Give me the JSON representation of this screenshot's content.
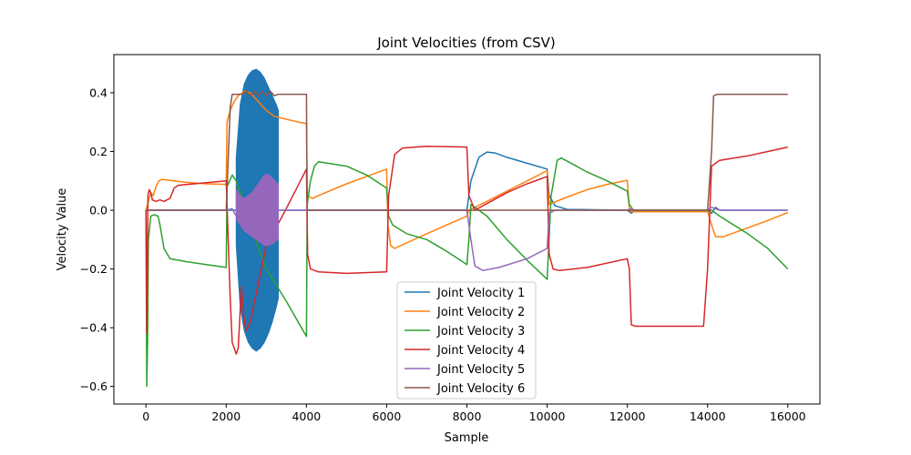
{
  "chart_data": {
    "type": "line",
    "title": "Joint Velocities (from CSV)",
    "xlabel": "Sample",
    "ylabel": "Velocity Value",
    "xlim": [
      -800,
      16800
    ],
    "ylim": [
      -0.66,
      0.53
    ],
    "xticks": [
      0,
      2000,
      4000,
      6000,
      8000,
      10000,
      12000,
      14000,
      16000
    ],
    "xtick_labels": [
      "0",
      "2000",
      "4000",
      "6000",
      "8000",
      "10000",
      "12000",
      "14000",
      "16000"
    ],
    "yticks": [
      0.4,
      0.2,
      0.0,
      -0.2,
      -0.4,
      -0.6
    ],
    "ytick_labels": [
      "0.4",
      "0.2",
      "0.0",
      "−0.2",
      "−0.4",
      "−0.6"
    ],
    "grid": false,
    "legend_position": "lower-center",
    "series": [
      {
        "name": "Joint Velocity 1",
        "color": "#1f77b4",
        "points": [
          [
            0,
            0
          ],
          [
            2000,
            0
          ],
          [
            2200,
            0
          ],
          [
            2300,
            0
          ]
        ],
        "band": {
          "x": [
            2250,
            2350,
            2450,
            2550,
            2650,
            2750,
            2850,
            2950,
            3050,
            3150,
            3250,
            3300
          ],
          "upper": [
            0.18,
            0.36,
            0.43,
            0.46,
            0.475,
            0.48,
            0.47,
            0.45,
            0.42,
            0.39,
            0.36,
            0.34
          ],
          "lower": [
            -0.12,
            -0.33,
            -0.41,
            -0.45,
            -0.47,
            -0.48,
            -0.47,
            -0.45,
            -0.42,
            -0.38,
            -0.33,
            -0.3
          ]
        },
        "points_after": [
          [
            3300,
            0
          ],
          [
            4000,
            0
          ],
          [
            5000,
            0
          ],
          [
            6000,
            0
          ],
          [
            8000,
            0
          ],
          [
            8100,
            0.1
          ],
          [
            8300,
            0.18
          ],
          [
            8500,
            0.198
          ],
          [
            8700,
            0.195
          ],
          [
            9000,
            0.18
          ],
          [
            9500,
            0.16
          ],
          [
            10000,
            0.14
          ],
          [
            10050,
            0.05
          ],
          [
            10200,
            0.015
          ],
          [
            10500,
            0.003
          ],
          [
            12000,
            0
          ],
          [
            12100,
            -0.01
          ],
          [
            12200,
            0
          ],
          [
            14000,
            0
          ],
          [
            14100,
            -0.01
          ],
          [
            14200,
            0.01
          ],
          [
            14300,
            0
          ],
          [
            16000,
            0
          ]
        ]
      },
      {
        "name": "Joint Velocity 2",
        "color": "#ff7f0e",
        "points": [
          [
            0,
            0
          ],
          [
            80,
            0.04
          ],
          [
            120,
            0.06
          ],
          [
            180,
            0.05
          ],
          [
            250,
            0.08
          ],
          [
            320,
            0.1
          ],
          [
            400,
            0.105
          ],
          [
            700,
            0.1
          ],
          [
            1000,
            0.095
          ],
          [
            1500,
            0.09
          ],
          [
            2000,
            0.088
          ],
          [
            2020,
            0.3
          ],
          [
            2100,
            0.34
          ],
          [
            2200,
            0.37
          ],
          [
            2300,
            0.39
          ],
          [
            2450,
            0.405
          ],
          [
            2600,
            0.4
          ],
          [
            2800,
            0.37
          ],
          [
            3000,
            0.34
          ],
          [
            3200,
            0.32
          ],
          [
            3500,
            0.31
          ],
          [
            3800,
            0.3
          ],
          [
            4000,
            0.295
          ],
          [
            4020,
            0.05
          ],
          [
            4150,
            0.04
          ],
          [
            4300,
            0.05
          ],
          [
            5000,
            0.09
          ],
          [
            5500,
            0.115
          ],
          [
            6000,
            0.14
          ],
          [
            6030,
            -0.05
          ],
          [
            6100,
            -0.12
          ],
          [
            6200,
            -0.13
          ],
          [
            7000,
            -0.08
          ],
          [
            8000,
            -0.02
          ],
          [
            8050,
            0.0
          ],
          [
            8500,
            0.03
          ],
          [
            9000,
            0.065
          ],
          [
            9500,
            0.1
          ],
          [
            10000,
            0.135
          ],
          [
            10050,
            0.02
          ],
          [
            10500,
            0.045
          ],
          [
            11000,
            0.07
          ],
          [
            11500,
            0.088
          ],
          [
            12000,
            0.102
          ],
          [
            12050,
            0.0
          ],
          [
            12100,
            -0.005
          ],
          [
            14000,
            -0.005
          ],
          [
            14100,
            -0.05
          ],
          [
            14200,
            -0.09
          ],
          [
            14400,
            -0.09
          ],
          [
            15000,
            -0.06
          ],
          [
            15500,
            -0.035
          ],
          [
            16000,
            -0.008
          ]
        ]
      },
      {
        "name": "Joint Velocity 3",
        "color": "#2ca02c",
        "points": [
          [
            0,
            0
          ],
          [
            20,
            -0.6
          ],
          [
            40,
            -0.45
          ],
          [
            60,
            -0.1
          ],
          [
            120,
            -0.02
          ],
          [
            200,
            -0.015
          ],
          [
            300,
            -0.02
          ],
          [
            350,
            -0.05
          ],
          [
            450,
            -0.13
          ],
          [
            600,
            -0.165
          ],
          [
            1000,
            -0.175
          ],
          [
            1500,
            -0.185
          ],
          [
            2000,
            -0.195
          ],
          [
            2020,
            0.08
          ],
          [
            2150,
            0.12
          ],
          [
            2250,
            0.1
          ],
          [
            2400,
            0.04
          ],
          [
            2700,
            -0.09
          ],
          [
            3000,
            -0.2
          ],
          [
            3500,
            -0.31
          ],
          [
            4000,
            -0.43
          ],
          [
            4020,
            0.02
          ],
          [
            4100,
            0.1
          ],
          [
            4200,
            0.15
          ],
          [
            4300,
            0.165
          ],
          [
            5000,
            0.15
          ],
          [
            5500,
            0.12
          ],
          [
            6000,
            0.075
          ],
          [
            6050,
            -0.02
          ],
          [
            6150,
            -0.05
          ],
          [
            6500,
            -0.08
          ],
          [
            7000,
            -0.1
          ],
          [
            7500,
            -0.14
          ],
          [
            8000,
            -0.185
          ],
          [
            8050,
            -0.1
          ],
          [
            8100,
            0.02
          ],
          [
            8500,
            -0.02
          ],
          [
            9000,
            -0.1
          ],
          [
            9500,
            -0.17
          ],
          [
            10000,
            -0.235
          ],
          [
            10100,
            0.05
          ],
          [
            10250,
            0.17
          ],
          [
            10350,
            0.178
          ],
          [
            10600,
            0.16
          ],
          [
            11000,
            0.13
          ],
          [
            11500,
            0.1
          ],
          [
            12000,
            0.065
          ],
          [
            12050,
            0.02
          ],
          [
            12150,
            0.0
          ],
          [
            14000,
            0.0
          ],
          [
            14100,
            0.0
          ],
          [
            14300,
            -0.02
          ],
          [
            15000,
            -0.08
          ],
          [
            15500,
            -0.13
          ],
          [
            16000,
            -0.2
          ]
        ]
      },
      {
        "name": "Joint Velocity 4",
        "color": "#d62728",
        "points": [
          [
            0,
            0
          ],
          [
            25,
            -0.42
          ],
          [
            50,
            0.05
          ],
          [
            80,
            0.07
          ],
          [
            120,
            0.06
          ],
          [
            160,
            0.035
          ],
          [
            250,
            0.03
          ],
          [
            350,
            0.035
          ],
          [
            450,
            0.03
          ],
          [
            600,
            0.04
          ],
          [
            700,
            0.075
          ],
          [
            800,
            0.085
          ],
          [
            1200,
            0.09
          ],
          [
            1600,
            0.095
          ],
          [
            2000,
            0.1
          ],
          [
            2100,
            -0.3
          ],
          [
            2150,
            -0.45
          ],
          [
            2250,
            -0.49
          ],
          [
            2300,
            -0.47
          ],
          [
            2380,
            -0.26
          ],
          [
            2450,
            -0.38
          ],
          [
            2500,
            -0.41
          ],
          [
            2600,
            -0.38
          ],
          [
            2800,
            -0.25
          ],
          [
            3000,
            -0.12
          ],
          [
            3400,
            -0.02
          ],
          [
            3700,
            0.06
          ],
          [
            4000,
            0.14
          ],
          [
            4030,
            -0.15
          ],
          [
            4100,
            -0.2
          ],
          [
            4300,
            -0.21
          ],
          [
            5000,
            -0.215
          ],
          [
            6000,
            -0.21
          ],
          [
            6050,
            0.05
          ],
          [
            6200,
            0.19
          ],
          [
            6400,
            0.212
          ],
          [
            7000,
            0.218
          ],
          [
            8000,
            0.215
          ],
          [
            8050,
            0.05
          ],
          [
            8200,
            0.0
          ],
          [
            8600,
            0.03
          ],
          [
            9000,
            0.06
          ],
          [
            9500,
            0.09
          ],
          [
            10000,
            0.115
          ],
          [
            10050,
            -0.15
          ],
          [
            10150,
            -0.2
          ],
          [
            10300,
            -0.205
          ],
          [
            11000,
            -0.195
          ],
          [
            12000,
            -0.165
          ],
          [
            12050,
            -0.2
          ],
          [
            12100,
            -0.39
          ],
          [
            12200,
            -0.395
          ],
          [
            13900,
            -0.395
          ],
          [
            14000,
            -0.2
          ],
          [
            14100,
            0.15
          ],
          [
            14300,
            0.17
          ],
          [
            15000,
            0.185
          ],
          [
            15500,
            0.2
          ],
          [
            16000,
            0.215
          ]
        ]
      },
      {
        "name": "Joint Velocity 5",
        "color": "#9467bd",
        "points": [
          [
            0,
            0
          ],
          [
            2000,
            0
          ],
          [
            2150,
            0.005
          ],
          [
            2250,
            -0.02
          ]
        ],
        "band": {
          "x": [
            2250,
            2350,
            2450,
            2550,
            2650,
            2750,
            2850,
            2950,
            3050,
            3150,
            3250,
            3300
          ],
          "upper": [
            0.07,
            0.05,
            0.04,
            0.05,
            0.06,
            0.08,
            0.1,
            0.12,
            0.122,
            0.11,
            0.095,
            0.09
          ],
          "lower": [
            -0.03,
            -0.05,
            -0.07,
            -0.08,
            -0.09,
            -0.1,
            -0.11,
            -0.12,
            -0.12,
            -0.115,
            -0.105,
            -0.1
          ]
        },
        "points_after": [
          [
            3300,
            0
          ],
          [
            4000,
            0
          ],
          [
            6000,
            0
          ],
          [
            8000,
            0
          ],
          [
            8050,
            -0.05
          ],
          [
            8100,
            -0.1
          ],
          [
            8200,
            -0.19
          ],
          [
            8400,
            -0.205
          ],
          [
            8800,
            -0.195
          ],
          [
            9500,
            -0.165
          ],
          [
            10000,
            -0.13
          ],
          [
            10050,
            -0.01
          ],
          [
            10200,
            0
          ],
          [
            12000,
            0
          ],
          [
            12100,
            0.005
          ],
          [
            12200,
            0
          ],
          [
            14000,
            0
          ],
          [
            14100,
            0.01
          ],
          [
            14300,
            0
          ],
          [
            16000,
            0
          ]
        ]
      },
      {
        "name": "Joint Velocity 6",
        "color": "#8c564b",
        "points": [
          [
            0,
            0
          ],
          [
            2000,
            0
          ],
          [
            2100,
            0.35
          ],
          [
            2150,
            0.395
          ],
          [
            2400,
            0.395
          ],
          [
            2500,
            0.405
          ],
          [
            2600,
            0.39
          ],
          [
            2700,
            0.405
          ],
          [
            2800,
            0.39
          ],
          [
            2900,
            0.405
          ],
          [
            3000,
            0.39
          ],
          [
            3100,
            0.405
          ],
          [
            3200,
            0.39
          ],
          [
            3300,
            0.395
          ],
          [
            4000,
            0.395
          ],
          [
            4020,
            0.0
          ],
          [
            6000,
            0
          ],
          [
            8000,
            0
          ],
          [
            10000,
            0
          ],
          [
            12000,
            0
          ],
          [
            14000,
            0
          ],
          [
            14100,
            0.2
          ],
          [
            14150,
            0.39
          ],
          [
            14250,
            0.395
          ],
          [
            16000,
            0.395
          ]
        ]
      }
    ]
  }
}
